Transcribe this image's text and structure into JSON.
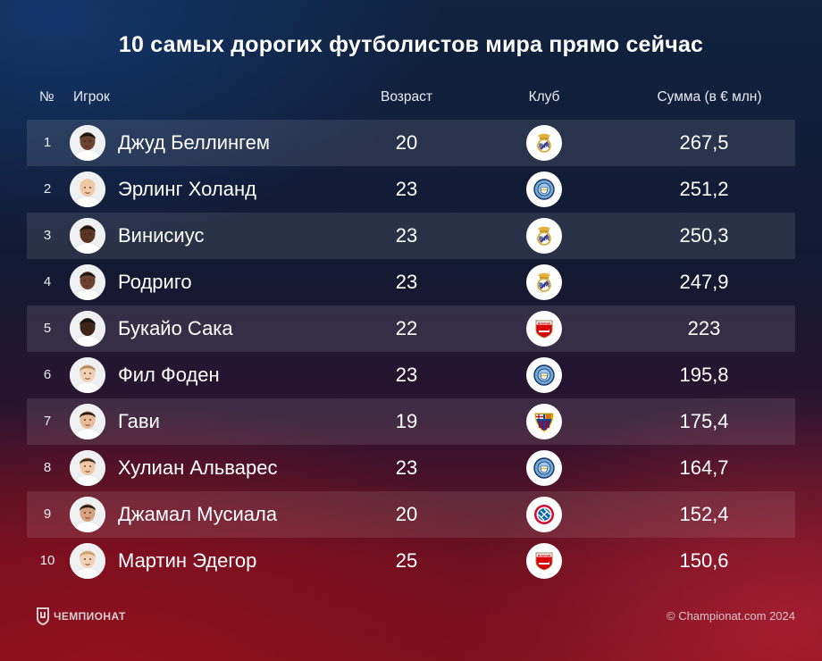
{
  "title": "10 самых дорогих футболистов мира прямо сейчас",
  "columns": {
    "num": "№",
    "player": "Игрок",
    "age": "Возраст",
    "club": "Клуб",
    "sum": "Сумма (в € млн)"
  },
  "rows": [
    {
      "num": "1",
      "name": "Джуд Беллингем",
      "age": "20",
      "club_icon": "real-madrid-crest-icon",
      "sum": "267,5"
    },
    {
      "num": "2",
      "name": "Эрлинг Холанд",
      "age": "23",
      "club_icon": "manchester-city-crest-icon",
      "sum": "251,2"
    },
    {
      "num": "3",
      "name": "Винисиус",
      "age": "23",
      "club_icon": "real-madrid-crest-icon",
      "sum": "250,3"
    },
    {
      "num": "4",
      "name": "Родриго",
      "age": "23",
      "club_icon": "real-madrid-crest-icon",
      "sum": "247,9"
    },
    {
      "num": "5",
      "name": "Букайо Сака",
      "age": "22",
      "club_icon": "arsenal-crest-icon",
      "sum": "223"
    },
    {
      "num": "6",
      "name": "Фил Фоден",
      "age": "23",
      "club_icon": "manchester-city-crest-icon",
      "sum": "195,8"
    },
    {
      "num": "7",
      "name": "Гави",
      "age": "19",
      "club_icon": "barcelona-crest-icon",
      "sum": "175,4"
    },
    {
      "num": "8",
      "name": "Хулиан Альварес",
      "age": "23",
      "club_icon": "manchester-city-crest-icon",
      "sum": "164,7"
    },
    {
      "num": "9",
      "name": "Джамал Мусиала",
      "age": "20",
      "club_icon": "bayern-crest-icon",
      "sum": "152,4"
    },
    {
      "num": "10",
      "name": "Мартин Эдегор",
      "age": "25",
      "club_icon": "arsenal-crest-icon",
      "sum": "150,6"
    }
  ],
  "footer": {
    "brand": "ЧЕМПИОНАТ",
    "copyright": "© Championat.com 2024"
  },
  "colors": {
    "background_top": "#10233f",
    "background_bottom": "#7a0f1c",
    "row_shade": "rgba(255,255,255,0.10)",
    "text": "#ffffff"
  }
}
